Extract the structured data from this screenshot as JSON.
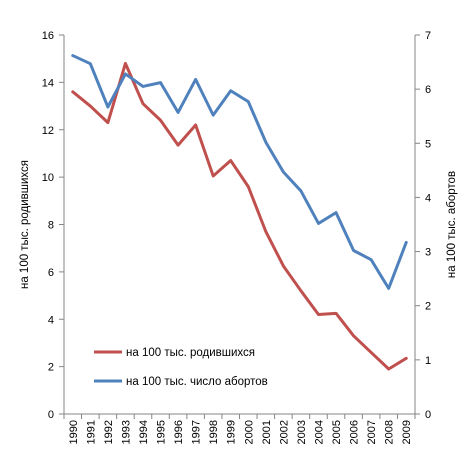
{
  "chart_data": {
    "type": "line",
    "x": [
      "1990",
      "1991",
      "1992",
      "1993",
      "1994",
      "1995",
      "1996",
      "1997",
      "1998",
      "1999",
      "2000",
      "2001",
      "2002",
      "2003",
      "2004",
      "2005",
      "2006",
      "2007",
      "2008",
      "2009"
    ],
    "series": [
      {
        "name": "на 100 тыс. родившихся",
        "axis": "left",
        "color": "#c0504d",
        "values": [
          13.6,
          13.0,
          12.3,
          14.8,
          13.1,
          12.4,
          11.35,
          12.2,
          10.05,
          10.7,
          9.6,
          7.7,
          6.25,
          5.2,
          4.2,
          4.25,
          3.3,
          2.6,
          1.9,
          2.35
        ]
      },
      {
        "name": "на 100 тыс. число абортов",
        "axis": "right",
        "color": "#4f81bd",
        "values": [
          6.62,
          6.47,
          5.67,
          6.28,
          6.05,
          6.12,
          5.57,
          6.18,
          5.52,
          5.97,
          5.77,
          5.02,
          4.47,
          4.12,
          3.52,
          3.72,
          3.02,
          2.85,
          2.32,
          3.17
        ]
      }
    ],
    "y_left": {
      "label": "на 100 тыс. родившихся",
      "ylim": [
        0,
        16
      ],
      "ticks": [
        0,
        2,
        4,
        6,
        8,
        10,
        12,
        14,
        16
      ]
    },
    "y_right": {
      "label": "на 100 тыс. абортов",
      "ylim": [
        0,
        7
      ],
      "ticks": [
        0,
        1,
        2,
        3,
        4,
        5,
        6,
        7
      ]
    },
    "grid": false,
    "legend": {
      "position": "bottom-left-inside",
      "entries": [
        "на 100 тыс. родившихся",
        "на 100 тыс. число абортов"
      ]
    }
  }
}
